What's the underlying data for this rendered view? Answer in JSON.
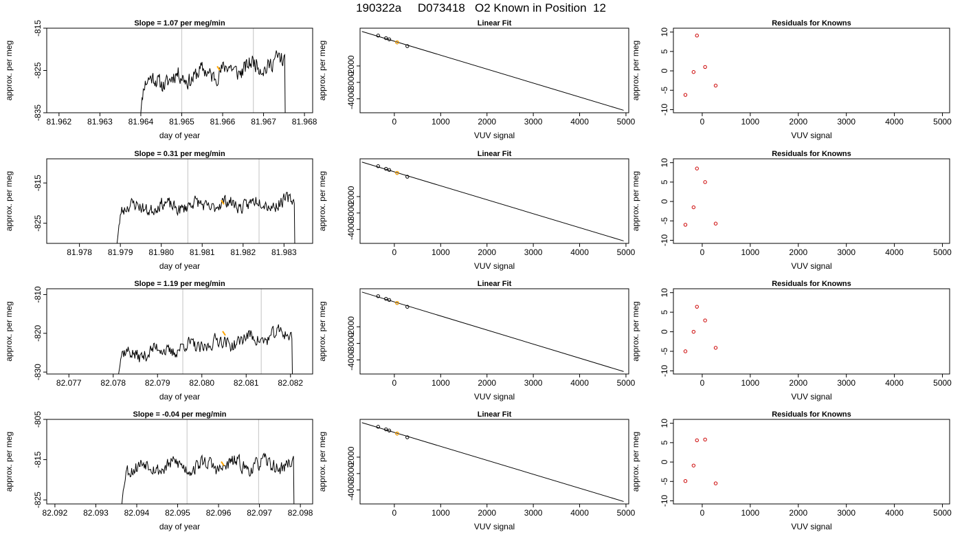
{
  "page_title": "190322a     D073418   O2 Known in Position  12",
  "colors": {
    "trace": "#000000",
    "highlight": "#ffa500",
    "residual": "#cc0000",
    "fit_line": "#000000",
    "marker": "#cccccc"
  },
  "chart_data": [
    {
      "type": "line",
      "panel": "time-series-row1",
      "title": "Slope =  1.07  per meg/min",
      "xlabel": "day of year",
      "ylabel": "approx. per meg",
      "xlim": [
        81.9617,
        81.9682
      ],
      "ylim": [
        -835,
        -815
      ],
      "x_ticks": [
        81.962,
        81.963,
        81.964,
        81.965,
        81.966,
        81.967,
        81.968
      ],
      "x_tick_labels": [
        "81.962",
        "81.963",
        "81.964",
        "81.965",
        "81.966",
        "81.967",
        "81.968"
      ],
      "y_ticks": [
        -815,
        -825,
        -835
      ],
      "y_tick_labels": [
        "-815",
        "-825",
        "-835"
      ],
      "vertical_markers": [
        81.965,
        81.96675
      ],
      "trace": {
        "x_start": 81.96395,
        "x_end": 81.96758,
        "points": 230,
        "base": -825.5,
        "trend": 5.5,
        "amp": 2.2,
        "seed": 11
      },
      "highlight": {
        "x": 81.9659,
        "y": -824.5
      }
    },
    {
      "type": "scatter",
      "panel": "linear-fit-row1",
      "title": "Linear Fit",
      "xlabel": "VUV signal",
      "ylabel": "approx. per meg",
      "xlim": [
        -740,
        5060
      ],
      "ylim": [
        -4850,
        300
      ],
      "x_ticks": [
        0,
        1000,
        2000,
        3000,
        4000,
        5000
      ],
      "x_tick_labels": [
        "0",
        "1000",
        "2000",
        "3000",
        "4000",
        "5000"
      ],
      "y_ticks": [
        -2000,
        -3000,
        -4000
      ],
      "y_tick_labels": [
        "-2000",
        "-3000",
        "-4000"
      ],
      "points": [
        [
          -350,
          -150
        ],
        [
          -180,
          -310
        ],
        [
          -110,
          -380
        ],
        [
          60,
          -560
        ],
        [
          280,
          -790
        ]
      ],
      "highlight_point": [
        60,
        -560
      ],
      "fit_line": [
        [
          -700,
          100
        ],
        [
          4950,
          -4700
        ]
      ]
    },
    {
      "type": "scatter",
      "panel": "residuals-row1",
      "title": "Residuals for Knowns",
      "xlabel": "VUV signal",
      "ylabel": "approx. per meg",
      "xlim": [
        -600,
        5150
      ],
      "ylim": [
        -10.8,
        11
      ],
      "x_ticks": [
        0,
        1000,
        2000,
        3000,
        4000,
        5000
      ],
      "x_tick_labels": [
        "0",
        "1000",
        "2000",
        "3000",
        "4000",
        "5000"
      ],
      "y_ticks": [
        10,
        5,
        0,
        -5,
        -10
      ],
      "y_tick_labels": [
        "10",
        "5",
        "0",
        "-5",
        "-10"
      ],
      "points": [
        [
          -350,
          -6.2
        ],
        [
          -180,
          -0.3
        ],
        [
          -110,
          9.1
        ],
        [
          60,
          1.0
        ],
        [
          280,
          -3.8
        ]
      ]
    },
    {
      "type": "line",
      "panel": "time-series-row2",
      "title": "Slope =  0.31  per meg/min",
      "xlabel": "day of year",
      "ylabel": "approx. per meg",
      "xlim": [
        81.9772,
        81.9837
      ],
      "ylim": [
        -830,
        -809
      ],
      "x_ticks": [
        81.978,
        81.979,
        81.98,
        81.981,
        81.982,
        81.983
      ],
      "x_tick_labels": [
        "81.978",
        "81.979",
        "81.980",
        "81.981",
        "81.982",
        "81.983"
      ],
      "y_ticks": [
        -815,
        -825
      ],
      "y_tick_labels": [
        "-815",
        "-825"
      ],
      "vertical_markers": [
        81.98065,
        81.98239
      ],
      "trace": {
        "x_start": 81.97888,
        "x_end": 81.98332,
        "points": 260,
        "base": -820.5,
        "trend": 1.5,
        "amp": 1.8,
        "seed": 23
      },
      "highlight": {
        "x": 81.9815,
        "y": -819.8
      }
    },
    {
      "type": "scatter",
      "panel": "linear-fit-row2",
      "title": "Linear Fit",
      "xlabel": "VUV signal",
      "ylabel": "approx. per meg",
      "xlim": [
        -740,
        5060
      ],
      "ylim": [
        -4850,
        300
      ],
      "x_ticks": [
        0,
        1000,
        2000,
        3000,
        4000,
        5000
      ],
      "x_tick_labels": [
        "0",
        "1000",
        "2000",
        "3000",
        "4000",
        "5000"
      ],
      "y_ticks": [
        -2000,
        -3000,
        -4000
      ],
      "y_tick_labels": [
        "-2000",
        "-3000",
        "-4000"
      ],
      "points": [
        [
          -350,
          -150
        ],
        [
          -180,
          -310
        ],
        [
          -110,
          -380
        ],
        [
          60,
          -560
        ],
        [
          280,
          -790
        ]
      ],
      "highlight_point": [
        60,
        -560
      ],
      "fit_line": [
        [
          -700,
          100
        ],
        [
          4950,
          -4700
        ]
      ]
    },
    {
      "type": "scatter",
      "panel": "residuals-row2",
      "title": "Residuals for Knowns",
      "xlabel": "VUV signal",
      "ylabel": "approx. per meg",
      "xlim": [
        -600,
        5150
      ],
      "ylim": [
        -10.8,
        11
      ],
      "x_ticks": [
        0,
        1000,
        2000,
        3000,
        4000,
        5000
      ],
      "x_tick_labels": [
        "0",
        "1000",
        "2000",
        "3000",
        "4000",
        "5000"
      ],
      "y_ticks": [
        10,
        5,
        0,
        -5,
        -10
      ],
      "y_tick_labels": [
        "10",
        "5",
        "0",
        "-5",
        "-10"
      ],
      "points": [
        [
          -350,
          -6.0
        ],
        [
          -180,
          -1.5
        ],
        [
          -110,
          8.5
        ],
        [
          60,
          5.0
        ],
        [
          280,
          -5.7
        ]
      ]
    },
    {
      "type": "line",
      "panel": "time-series-row3",
      "title": "Slope =  1.19  per meg/min",
      "xlabel": "day of year",
      "ylabel": "approx. per meg",
      "xlim": [
        82.0765,
        82.0825
      ],
      "ylim": [
        -830.5,
        -808.5
      ],
      "x_ticks": [
        82.077,
        82.078,
        82.079,
        82.08,
        82.081,
        82.082
      ],
      "x_tick_labels": [
        "82.077",
        "82.078",
        "82.079",
        "82.080",
        "82.081",
        "82.082"
      ],
      "y_ticks": [
        -810,
        -820,
        -830
      ],
      "y_tick_labels": [
        "-810",
        "-820",
        "-830"
      ],
      "vertical_markers": [
        82.07957,
        82.08134
      ],
      "trace": {
        "x_start": 82.07805,
        "x_end": 82.0821,
        "points": 240,
        "base": -823,
        "trend": 6.0,
        "amp": 2.0,
        "seed": 37
      },
      "highlight": {
        "x": 82.0805,
        "y": -820
      }
    },
    {
      "type": "scatter",
      "panel": "linear-fit-row3",
      "title": "Linear Fit",
      "xlabel": "VUV signal",
      "ylabel": "approx. per meg",
      "xlim": [
        -740,
        5060
      ],
      "ylim": [
        -4850,
        300
      ],
      "x_ticks": [
        0,
        1000,
        2000,
        3000,
        4000,
        5000
      ],
      "x_tick_labels": [
        "0",
        "1000",
        "2000",
        "3000",
        "4000",
        "5000"
      ],
      "y_ticks": [
        -2000,
        -3000,
        -4000
      ],
      "y_tick_labels": [
        "-2000",
        "-3000",
        "-4000"
      ],
      "points": [
        [
          -350,
          -150
        ],
        [
          -180,
          -310
        ],
        [
          -110,
          -380
        ],
        [
          60,
          -560
        ],
        [
          280,
          -790
        ]
      ],
      "highlight_point": [
        60,
        -560
      ],
      "fit_line": [
        [
          -700,
          100
        ],
        [
          4950,
          -4700
        ]
      ]
    },
    {
      "type": "scatter",
      "panel": "residuals-row3",
      "title": "Residuals for Knowns",
      "xlabel": "VUV signal",
      "ylabel": "approx. per meg",
      "xlim": [
        -600,
        5150
      ],
      "ylim": [
        -10.8,
        11
      ],
      "x_ticks": [
        0,
        1000,
        2000,
        3000,
        4000,
        5000
      ],
      "x_tick_labels": [
        "0",
        "1000",
        "2000",
        "3000",
        "4000",
        "5000"
      ],
      "y_ticks": [
        10,
        5,
        0,
        -5,
        -10
      ],
      "y_tick_labels": [
        "10",
        "5",
        "0",
        "-5",
        "-10"
      ],
      "points": [
        [
          -350,
          -5.0
        ],
        [
          -180,
          0.0
        ],
        [
          -110,
          6.4
        ],
        [
          60,
          2.9
        ],
        [
          280,
          -4.1
        ]
      ]
    },
    {
      "type": "line",
      "panel": "time-series-row4",
      "title": "Slope =  -0.04  per meg/min",
      "xlabel": "day of year",
      "ylabel": "approx. per meg",
      "xlim": [
        82.0918,
        82.0983
      ],
      "ylim": [
        -826,
        -805
      ],
      "x_ticks": [
        82.092,
        82.093,
        82.094,
        82.095,
        82.096,
        82.097,
        82.098
      ],
      "x_tick_labels": [
        "82.092",
        "82.093",
        "82.094",
        "82.095",
        "82.096",
        "82.097",
        "82.098"
      ],
      "y_ticks": [
        -805,
        -815,
        -825
      ],
      "y_tick_labels": [
        "-805",
        "-815",
        "-825"
      ],
      "vertical_markers": [
        82.09523,
        82.09698
      ],
      "trace": {
        "x_start": 82.0936,
        "x_end": 82.0979,
        "points": 250,
        "base": -816.5,
        "trend": 0.5,
        "amp": 2.0,
        "seed": 53
      },
      "highlight": {
        "x": 82.0961,
        "y": -816
      }
    },
    {
      "type": "scatter",
      "panel": "linear-fit-row4",
      "title": "Linear Fit",
      "xlabel": "VUV signal",
      "ylabel": "approx. per meg",
      "xlim": [
        -740,
        5060
      ],
      "ylim": [
        -4850,
        300
      ],
      "x_ticks": [
        0,
        1000,
        2000,
        3000,
        4000,
        5000
      ],
      "x_tick_labels": [
        "0",
        "1000",
        "2000",
        "3000",
        "4000",
        "5000"
      ],
      "y_ticks": [
        -2000,
        -3000,
        -4000
      ],
      "y_tick_labels": [
        "-2000",
        "-3000",
        "-4000"
      ],
      "points": [
        [
          -350,
          -150
        ],
        [
          -180,
          -310
        ],
        [
          -110,
          -380
        ],
        [
          60,
          -560
        ],
        [
          280,
          -790
        ]
      ],
      "highlight_point": [
        60,
        -560
      ],
      "fit_line": [
        [
          -700,
          100
        ],
        [
          4950,
          -4700
        ]
      ]
    },
    {
      "type": "scatter",
      "panel": "residuals-row4",
      "title": "Residuals for Knowns",
      "xlabel": "VUV signal",
      "ylabel": "approx. per meg",
      "xlim": [
        -600,
        5150
      ],
      "ylim": [
        -10.8,
        11
      ],
      "x_ticks": [
        0,
        1000,
        2000,
        3000,
        4000,
        5000
      ],
      "x_tick_labels": [
        "0",
        "1000",
        "2000",
        "3000",
        "4000",
        "5000"
      ],
      "y_ticks": [
        10,
        5,
        0,
        -5,
        -10
      ],
      "y_tick_labels": [
        "10",
        "5",
        "0",
        "-5",
        "-10"
      ],
      "points": [
        [
          -350,
          -4.9
        ],
        [
          -180,
          -0.9
        ],
        [
          -110,
          5.6
        ],
        [
          60,
          5.8
        ],
        [
          280,
          -5.5
        ]
      ]
    }
  ]
}
